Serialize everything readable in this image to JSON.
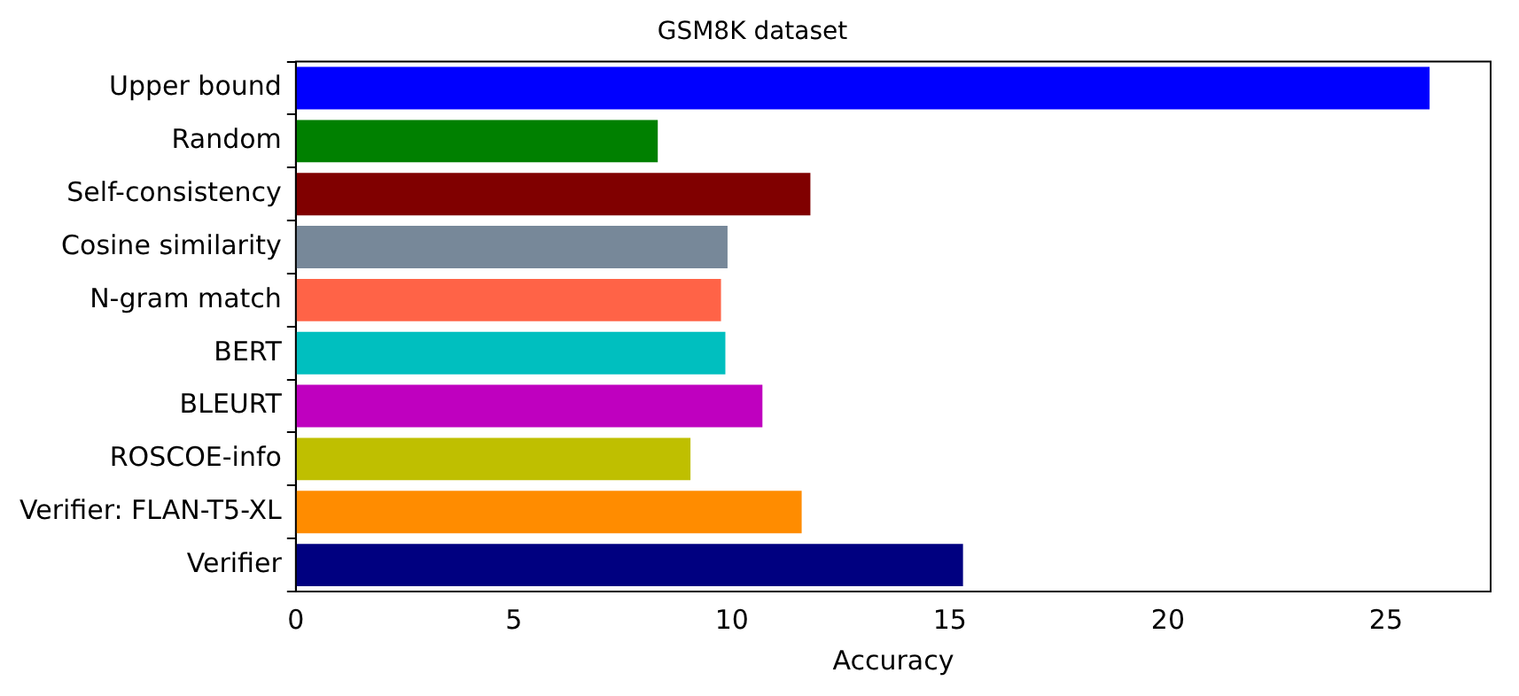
{
  "chart_data": {
    "type": "bar",
    "orientation": "horizontal",
    "title": "GSM8K dataset",
    "xlabel": "Accuracy",
    "categories": [
      "Upper bound",
      "Random",
      "Self-consistency",
      "Cosine similarity",
      "N-gram match",
      "BERT",
      "BLEURT",
      "ROSCOE-info",
      "Verifier: FLAN-T5-XL",
      "Verifier"
    ],
    "values": [
      26.0,
      8.3,
      11.8,
      9.9,
      9.75,
      9.85,
      10.7,
      9.05,
      11.6,
      15.3
    ],
    "colors": [
      "#0000ff",
      "#008000",
      "#800000",
      "#778899",
      "#ff6347",
      "#00bfbf",
      "#bf00bf",
      "#bfbf00",
      "#ff8c00",
      "#000080"
    ],
    "xlim": [
      0,
      27.4
    ],
    "xticks": [
      0,
      5,
      10,
      15,
      20,
      25
    ],
    "grid": false,
    "legend": false
  }
}
